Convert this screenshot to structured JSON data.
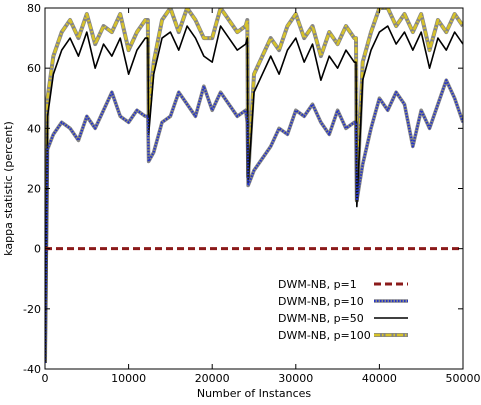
{
  "chart_data": {
    "type": "line",
    "xlabel": "Number of Instances",
    "ylabel": "kappa statistic (percent)",
    "xlim": [
      0,
      50000
    ],
    "ylim": [
      -40,
      80
    ],
    "x_ticks": [
      0,
      10000,
      20000,
      30000,
      40000,
      50000
    ],
    "x_tick_labels": [
      "0",
      "10000",
      "20000",
      "30000",
      "40000",
      "50000"
    ],
    "y_ticks": [
      -40,
      -20,
      0,
      20,
      40,
      60,
      80
    ],
    "y_tick_labels": [
      "-40",
      "-20",
      "0",
      "20",
      "40",
      "60",
      "80"
    ],
    "grid": false,
    "legend_position": "lower-right",
    "series": [
      {
        "name": "DWM-NB, p=1",
        "color": "#8b1a1a",
        "style": "dashed",
        "x": [
          0,
          50000
        ],
        "y": [
          0,
          0
        ]
      },
      {
        "name": "DWM-NB, p=10",
        "color": "#2433c8",
        "style": "dotted",
        "x": [
          0,
          300,
          1000,
          2000,
          3000,
          4000,
          5000,
          6000,
          7000,
          8000,
          9000,
          10000,
          11000,
          12000,
          12300,
          12400,
          13000,
          14000,
          15000,
          16000,
          17000,
          18000,
          19000,
          20000,
          21000,
          22000,
          23000,
          24000,
          24200,
          24300,
          25000,
          26000,
          27000,
          28000,
          29000,
          30000,
          31000,
          32000,
          33000,
          34000,
          35000,
          36000,
          37000,
          37200,
          37300,
          38000,
          39000,
          40000,
          41000,
          42000,
          43000,
          44000,
          45000,
          46000,
          47000,
          48000,
          49000,
          50000
        ],
        "y": [
          -38,
          33,
          38,
          42,
          40,
          36,
          44,
          40,
          46,
          52,
          44,
          42,
          46,
          44,
          44,
          29,
          32,
          42,
          44,
          52,
          48,
          44,
          54,
          46,
          52,
          48,
          44,
          46,
          42,
          21,
          26,
          30,
          34,
          40,
          38,
          46,
          44,
          48,
          42,
          38,
          46,
          40,
          42,
          42,
          16,
          28,
          40,
          50,
          46,
          52,
          48,
          34,
          46,
          40,
          48,
          56,
          50,
          42
        ]
      },
      {
        "name": "DWM-NB, p=50",
        "color": "#000000",
        "style": "solid",
        "x": [
          0,
          300,
          1000,
          2000,
          3000,
          4000,
          5000,
          6000,
          7000,
          8000,
          9000,
          10000,
          11000,
          12000,
          12300,
          12400,
          13000,
          14000,
          15000,
          16000,
          17000,
          18000,
          19000,
          20000,
          21000,
          22000,
          23000,
          24000,
          24200,
          24300,
          25000,
          26000,
          27000,
          28000,
          29000,
          30000,
          31000,
          32000,
          33000,
          34000,
          35000,
          36000,
          37000,
          37200,
          37300,
          38000,
          39000,
          40000,
          41000,
          42000,
          43000,
          44000,
          45000,
          46000,
          47000,
          48000,
          49000,
          50000
        ],
        "y": [
          -38,
          44,
          58,
          66,
          70,
          64,
          72,
          60,
          68,
          64,
          70,
          58,
          66,
          70,
          70,
          38,
          58,
          70,
          72,
          66,
          74,
          70,
          64,
          62,
          74,
          70,
          66,
          68,
          70,
          22,
          52,
          58,
          64,
          58,
          66,
          70,
          62,
          68,
          56,
          64,
          60,
          66,
          62,
          62,
          14,
          56,
          66,
          72,
          74,
          68,
          72,
          66,
          72,
          60,
          70,
          66,
          72,
          68
        ]
      },
      {
        "name": "DWM-NB, p=100",
        "color": "#d6c22a",
        "style": "dash-dot",
        "x": [
          0,
          300,
          1000,
          2000,
          3000,
          4000,
          5000,
          6000,
          7000,
          8000,
          9000,
          10000,
          11000,
          12000,
          12300,
          12400,
          13000,
          14000,
          15000,
          16000,
          17000,
          18000,
          19000,
          20000,
          21000,
          22000,
          23000,
          24000,
          24200,
          24300,
          25000,
          26000,
          27000,
          28000,
          29000,
          30000,
          31000,
          32000,
          33000,
          34000,
          35000,
          36000,
          37000,
          37200,
          37300,
          38000,
          39000,
          40000,
          41000,
          42000,
          43000,
          44000,
          45000,
          46000,
          47000,
          48000,
          49000,
          50000
        ],
        "y": [
          -38,
          50,
          64,
          72,
          76,
          70,
          78,
          68,
          74,
          72,
          78,
          66,
          72,
          76,
          76,
          44,
          62,
          76,
          80,
          72,
          80,
          76,
          70,
          70,
          80,
          76,
          72,
          74,
          76,
          24,
          58,
          64,
          70,
          66,
          74,
          78,
          70,
          74,
          64,
          72,
          68,
          74,
          70,
          70,
          16,
          62,
          72,
          80,
          80,
          74,
          78,
          72,
          78,
          66,
          76,
          72,
          78,
          74
        ]
      }
    ]
  }
}
